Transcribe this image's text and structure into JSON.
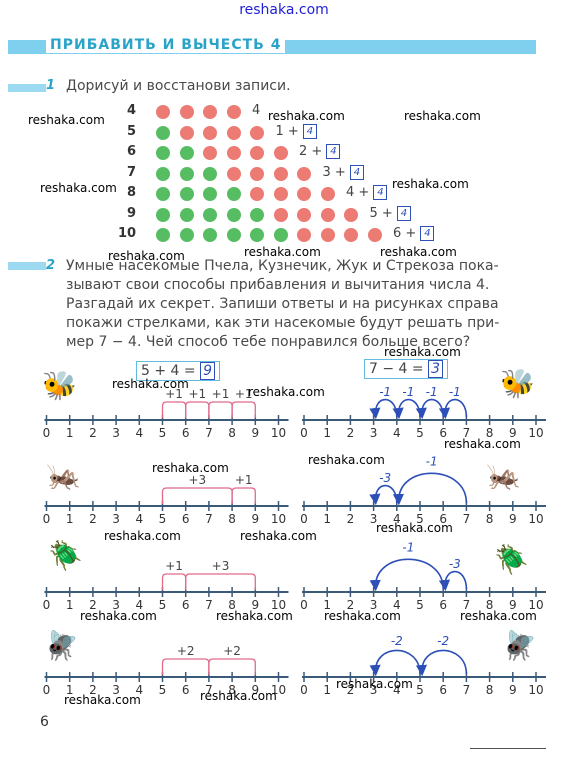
{
  "site": "reshaka.com",
  "title": "ПРИБАВИТЬ И ВЫЧЕСТЬ 4",
  "task1": {
    "num": "1",
    "text": "Дорисуй и восстанови записи."
  },
  "rows": [
    {
      "label": "4",
      "greens": 0,
      "reds": 4,
      "expr": "4",
      "box": ""
    },
    {
      "label": "5",
      "greens": 1,
      "reds": 4,
      "expr": "1 +",
      "box": "4"
    },
    {
      "label": "6",
      "greens": 2,
      "reds": 4,
      "expr": "2 +",
      "box": "4"
    },
    {
      "label": "7",
      "greens": 3,
      "reds": 4,
      "expr": "3 +",
      "box": "4"
    },
    {
      "label": "8",
      "greens": 4,
      "reds": 4,
      "expr": "4 +",
      "box": "4"
    },
    {
      "label": "9",
      "greens": 5,
      "reds": 4,
      "expr": "5 +",
      "box": "4"
    },
    {
      "label": "10",
      "greens": 6,
      "reds": 4,
      "expr": "6 +",
      "box": "4"
    }
  ],
  "task2": {
    "num": "2",
    "lines": [
      "Умные насекомые Пчела, Кузнечик, Жук и Стрекоза пока-",
      "зывают свои способы прибавления и вычитания числа 4.",
      "Разгадай их секрет. Запиши ответы и на рисунках справа",
      "покажи стрелками, как эти насекомые будут решать при-",
      "мер 7 − 4. Чей способ тебе понравился больше всего?"
    ]
  },
  "eq_add": {
    "text": "5 + 4 =",
    "answer": "9"
  },
  "eq_sub": {
    "text": "7 − 4 =",
    "answer": "3"
  },
  "tick_labels": [
    "0",
    "1",
    "2",
    "3",
    "4",
    "5",
    "6",
    "7",
    "8",
    "9",
    "10"
  ],
  "lines": [
    {
      "insect_left": "bee",
      "insect_right": "bee",
      "add_labels": [
        "+1",
        "+1",
        "+1",
        "+1"
      ],
      "sub_labels": [
        "-1",
        "-1",
        "-1",
        "-1"
      ]
    },
    {
      "insect_left": "grasshopper",
      "insect_right": "grasshopper",
      "add_labels": [
        "+3",
        "+1"
      ],
      "sub_labels": [
        "-1",
        "-3"
      ]
    },
    {
      "insect_left": "beetle",
      "insect_right": "beetle",
      "add_labels": [
        "+1",
        "+3"
      ],
      "sub_labels": [
        "-3",
        "-1"
      ]
    },
    {
      "insect_left": "dragonfly",
      "insect_right": "dragonfly",
      "add_labels": [
        "+2",
        "+2"
      ],
      "sub_labels": [
        "-2",
        "-2"
      ]
    }
  ],
  "page_number": "6",
  "colors": {
    "accent": "#2aa3c8",
    "banner": "#7fd0ee",
    "red_dot": "#ec7b73",
    "green_dot": "#56bd62",
    "ink": "#2c4fb8",
    "line": "#3a5a78"
  }
}
